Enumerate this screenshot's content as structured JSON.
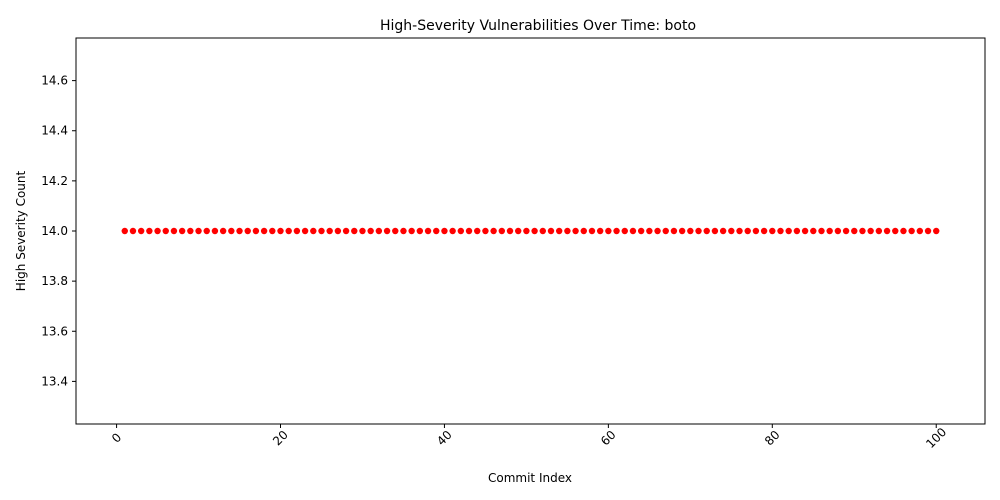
{
  "chart_data": {
    "type": "scatter",
    "title": "High-Severity Vulnerabilities Over Time: boto",
    "xlabel": "Commit Index",
    "ylabel": "High Severity Count",
    "xlim": [
      -4.95,
      105.95
    ],
    "ylim": [
      13.23,
      14.77
    ],
    "xticks": [
      0,
      20,
      40,
      60,
      80,
      100
    ],
    "xtick_labels": [
      "0",
      "20",
      "40",
      "60",
      "80",
      "100"
    ],
    "yticks": [
      13.4,
      13.6,
      13.8,
      14.0,
      14.2,
      14.4,
      14.6
    ],
    "ytick_labels": [
      "13.4",
      "13.6",
      "13.8",
      "14.0",
      "14.2",
      "14.4",
      "14.6"
    ],
    "xtick_rotation": 45,
    "grid": false,
    "marker_color": "#ff0000",
    "x_start": 1,
    "x_end": 100,
    "y_constant": 14
  }
}
